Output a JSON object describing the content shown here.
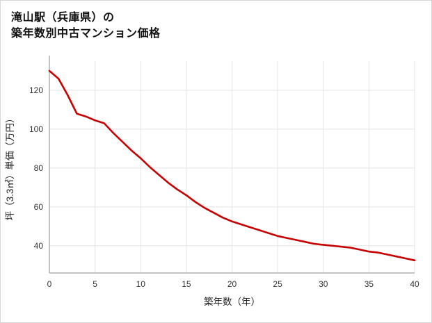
{
  "title": {
    "line1": "滝山駅（兵庫県）の",
    "line2": "築年数別中古マンション価格"
  },
  "chart_data": {
    "type": "line",
    "title": "滝山駅（兵庫県）の 築年数別中古マンション価格",
    "xlabel": "築年数（年）",
    "ylabel": "坪（3.3㎡）単価（万円）",
    "x": [
      0,
      1,
      2,
      3,
      4,
      5,
      6,
      7,
      8,
      9,
      10,
      11,
      12,
      13,
      14,
      15,
      16,
      17,
      18,
      19,
      20,
      21,
      22,
      23,
      24,
      25,
      26,
      27,
      28,
      29,
      30,
      31,
      32,
      33,
      34,
      35,
      36,
      37,
      38,
      39,
      40
    ],
    "values": [
      130,
      126,
      117.5,
      108,
      106.5,
      104.5,
      103,
      98,
      93.5,
      89,
      85,
      80.5,
      76.5,
      72.5,
      69,
      66,
      62.5,
      59.5,
      57,
      54.5,
      52.5,
      51,
      49.5,
      48,
      46.5,
      45,
      44,
      43,
      42,
      41,
      40.5,
      40,
      39.5,
      39,
      38,
      37,
      36.5,
      35.5,
      34.5,
      33.5,
      32.5
    ],
    "xlim": [
      0,
      40
    ],
    "ylim": [
      26,
      135
    ],
    "x_ticks": [
      0,
      5,
      10,
      15,
      20,
      25,
      30,
      35,
      40
    ],
    "y_ticks": [
      40,
      60,
      80,
      100,
      120
    ],
    "grid": true,
    "legend": "none",
    "line_color": "#c80000",
    "axis_color": "#b0b0b0",
    "grid_color": "#e4e4e4"
  }
}
